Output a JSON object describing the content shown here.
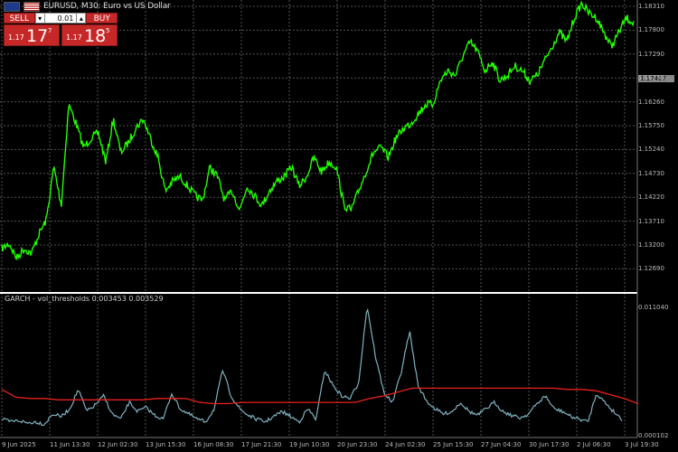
{
  "header": {
    "title": "EURUSD, M30: Euro vs US Dollar"
  },
  "trade_panel": {
    "sell_label": "SELL",
    "buy_label": "BUY",
    "volume": "0.01",
    "sell_price_small": "1.17",
    "sell_price_big": "17",
    "sell_price_sup": "7",
    "buy_price_small": "1.17",
    "buy_price_big": "18",
    "buy_price_sup": "5"
  },
  "indicator": {
    "label": "GARCH - vol_thresholds 0.003453 0.003529"
  },
  "price_axis_labels": [
    "1.18310",
    "1.17800",
    "1.17290",
    "1.16770",
    "1.16260",
    "1.15750",
    "1.15240",
    "1.14730",
    "1.14220",
    "1.13710",
    "1.13200",
    "1.12690"
  ],
  "current_price_tag": "1.17407",
  "sub_axis_labels": [
    "0.011040",
    "0.000102"
  ],
  "time_labels": [
    "9 Jun 2025",
    "11 Jun 13:30",
    "12 Jun 02:30",
    "13 Jun 15:30",
    "16 Jun 08:30",
    "17 Jun 21:30",
    "19 Jun 10:30",
    "20 Jun 23:30",
    "24 Jun 02:30",
    "25 Jun 15:30",
    "27 Jun 04:30",
    "30 Jun 17:30",
    "2 Jul 06:30",
    "3 Jul 19:30"
  ],
  "colors": {
    "price_line": "#22ff00",
    "vol_line": "#7fb2c0",
    "threshold_line": "#e8221a",
    "grid": "#555555",
    "background": "#000000"
  },
  "chart_data": [
    {
      "type": "line",
      "name": "price",
      "ylim": [
        1.1269,
        1.1856
      ],
      "values": [
        1.135,
        1.136,
        1.133,
        1.135,
        1.134,
        1.138,
        1.141,
        1.152,
        1.144,
        1.165,
        1.161,
        1.156,
        1.158,
        1.159,
        1.153,
        1.162,
        1.155,
        1.157,
        1.16,
        1.162,
        1.158,
        1.154,
        1.147,
        1.149,
        1.15,
        1.148,
        1.146,
        1.145,
        1.152,
        1.15,
        1.145,
        1.147,
        1.143,
        1.148,
        1.146,
        1.144,
        1.147,
        1.149,
        1.15,
        1.152,
        1.148,
        1.15,
        1.154,
        1.151,
        1.153,
        1.152,
        1.144,
        1.143,
        1.147,
        1.151,
        1.155,
        1.156,
        1.154,
        1.158,
        1.16,
        1.161,
        1.163,
        1.165,
        1.165,
        1.17,
        1.172,
        1.171,
        1.175,
        1.178,
        1.176,
        1.172,
        1.174,
        1.17,
        1.171,
        1.173,
        1.172,
        1.17,
        1.171,
        1.174,
        1.177,
        1.18,
        1.178,
        1.183,
        1.186,
        1.184,
        1.183,
        1.18,
        1.177,
        1.18,
        1.183,
        1.182
      ]
    },
    {
      "type": "line",
      "name": "volatility",
      "values": [
        0.0022,
        0.002,
        0.0021,
        0.0019,
        0.002,
        0.0018,
        0.0026,
        0.0024,
        0.003,
        0.0045,
        0.0028,
        0.0033,
        0.004,
        0.0026,
        0.0022,
        0.0035,
        0.0028,
        0.0031,
        0.0025,
        0.0022,
        0.0042,
        0.003,
        0.0026,
        0.0022,
        0.002,
        0.003,
        0.006,
        0.004,
        0.003,
        0.0025,
        0.0022,
        0.002,
        0.0024,
        0.0028,
        0.0024,
        0.002,
        0.003,
        0.0022,
        0.006,
        0.0048,
        0.004,
        0.0038,
        0.005,
        0.011,
        0.007,
        0.0042,
        0.0035,
        0.0058,
        0.009,
        0.0048,
        0.0036,
        0.003,
        0.0026,
        0.0028,
        0.0035,
        0.0028,
        0.0025,
        0.003,
        0.0035,
        0.0028,
        0.0025,
        0.0023,
        0.0026,
        0.0034,
        0.004,
        0.003,
        0.0028,
        0.0024,
        0.0022,
        0.002,
        0.0042,
        0.0035,
        0.0028,
        0.0022
      ]
    },
    {
      "type": "line",
      "name": "threshold",
      "values": [
        0.0045,
        0.0039,
        0.0038,
        0.0038,
        0.0037,
        0.0037,
        0.0037,
        0.0037,
        0.0037,
        0.0037,
        0.0037,
        0.0038,
        0.0038,
        0.0038,
        0.0035,
        0.0034,
        0.0034,
        0.0035,
        0.0035,
        0.0035,
        0.0035,
        0.0035,
        0.0035,
        0.0035,
        0.0035,
        0.0035,
        0.0038,
        0.004,
        0.0043,
        0.0046,
        0.0046,
        0.0046,
        0.0046,
        0.0046,
        0.0046,
        0.0046,
        0.0046,
        0.0046,
        0.0046,
        0.0046,
        0.0045,
        0.0045,
        0.0044,
        0.0041,
        0.0038,
        0.0034
      ]
    }
  ]
}
